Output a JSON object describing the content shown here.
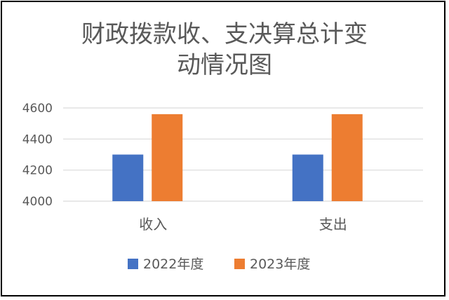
{
  "chart_data": {
    "type": "bar",
    "title_line1": "财政拨款收、支决算总计变",
    "title_line2": "动情况图",
    "categories": [
      "收入",
      "支出"
    ],
    "series": [
      {
        "name": "2022年度",
        "values": [
          4300,
          4300
        ],
        "color": "#4472C4"
      },
      {
        "name": "2023年度",
        "values": [
          4560,
          4560
        ],
        "color": "#ED7D31"
      }
    ],
    "ylim": [
      4000,
      4600
    ],
    "yticks": [
      4000,
      4200,
      4400,
      4600
    ],
    "grid": true,
    "legend_position": "bottom"
  }
}
